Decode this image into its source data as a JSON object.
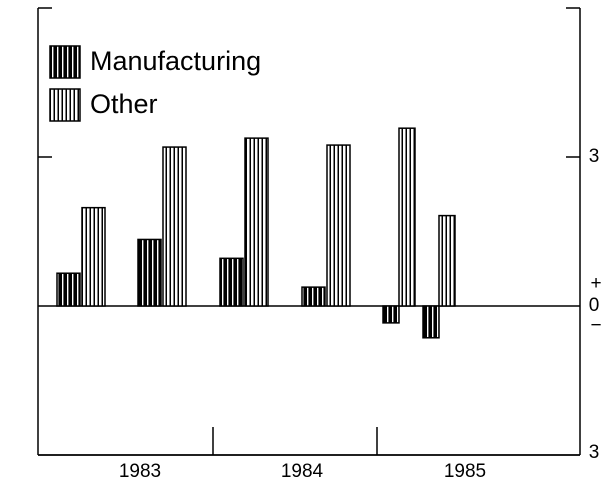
{
  "chart_data": {
    "type": "bar",
    "categories": [
      null,
      null,
      null,
      null,
      null,
      null
    ],
    "year_labels": [
      "1983",
      "1984",
      "1985"
    ],
    "series": [
      {
        "name": "Manufacturing",
        "color": "#000000",
        "values": [
          0.66,
          1.34,
          0.96,
          0.38,
          -0.34,
          -0.64
        ]
      },
      {
        "name": "Other",
        "color": "#ffffff",
        "values": [
          1.98,
          3.2,
          3.38,
          3.24,
          3.58,
          1.82
        ]
      }
    ],
    "ylim": [
      -3,
      6
    ],
    "yticks": [
      {
        "value": -3,
        "label": "3"
      },
      0,
      3
    ],
    "sign_labels": [
      "+",
      "−"
    ],
    "legend": "top-left"
  }
}
